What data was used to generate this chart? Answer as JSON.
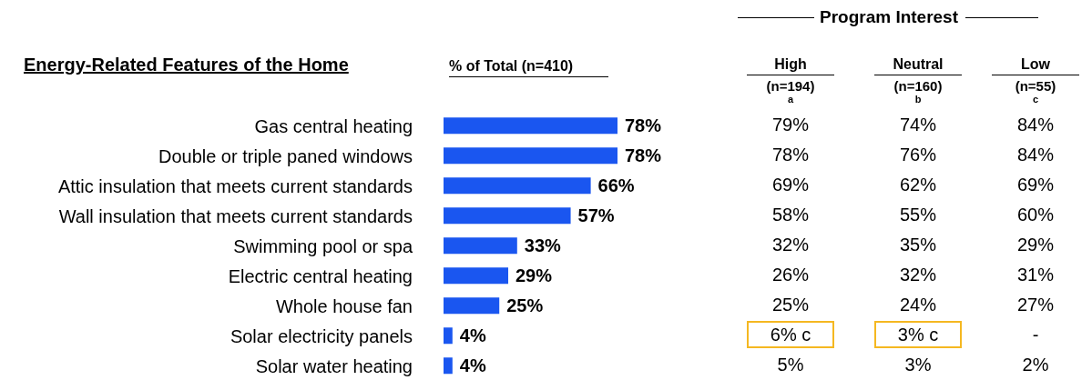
{
  "chart_data": [
    {
      "type": "bar",
      "orientation": "horizontal",
      "title": "Energy-Related Features of the Home",
      "xlabel": "% of Total (n=410)",
      "categories": [
        "Gas central heating",
        "Double or triple paned windows",
        "Attic insulation that meets current standards",
        "Wall insulation that meets current standards",
        "Swimming pool or spa",
        "Electric central heating",
        "Whole house fan",
        "Solar electricity panels",
        "Solar water heating"
      ],
      "values": [
        78,
        78,
        66,
        57,
        33,
        29,
        25,
        4,
        4
      ],
      "value_labels": [
        "78%",
        "78%",
        "66%",
        "57%",
        "33%",
        "29%",
        "25%",
        "4%",
        "4%"
      ],
      "color": "#1a56f0"
    },
    {
      "type": "other",
      "title": "Program Interest",
      "annotations": [
        "High",
        "Neutral",
        "Low",
        "(n=194)",
        "(n=160)",
        "(n=55)",
        "a",
        "b",
        "c",
        "79%",
        "74%",
        "84%",
        "78%",
        "76%",
        "84%",
        "69%",
        "62%",
        "69%",
        "58%",
        "55%",
        "60%",
        "32%",
        "35%",
        "29%",
        "26%",
        "32%",
        "31%",
        "25%",
        "24%",
        "27%",
        "6% c",
        "3% c",
        "-",
        "5%",
        "3%",
        "2%"
      ]
    }
  ]
}
